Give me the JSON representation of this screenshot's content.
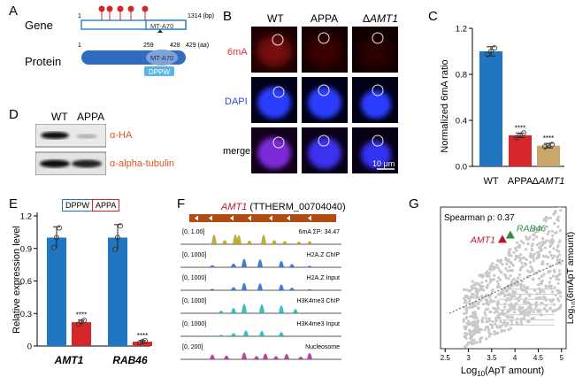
{
  "panel_letters": [
    "A",
    "B",
    "C",
    "D",
    "E",
    "F",
    "G"
  ],
  "panelA": {
    "gene_label": "Gene",
    "protein_label": "Protein",
    "gene_start": "1",
    "gene_end": "1314 (bp)",
    "gene_domain": "MT-A70",
    "prot_start": "1",
    "prot_ticks": [
      "259",
      "428",
      "429 (aa)"
    ],
    "prot_domain": "MT-A70",
    "motif": "DPPW",
    "colors": {
      "gene_line": "#3a85c8",
      "protein": "#2f6cc1",
      "domain": "#7fa3d8",
      "pin": "#d5262a",
      "motif": "#5bb4e5"
    }
  },
  "panelB": {
    "columns": [
      "WT",
      "APPA",
      "ΔAMT1"
    ],
    "rows": [
      "6mA",
      "DAPI",
      "merge"
    ],
    "scale_bar": "10 μm",
    "row_colors": {
      "6mA": "#e3343c",
      "DAPI": "#2c4be0"
    }
  },
  "panelD": {
    "columns": [
      "WT",
      "APPA"
    ],
    "bands": [
      "α-HA",
      "α-alpha-tubulin"
    ],
    "label_color": "#e0531f"
  },
  "panelF": {
    "gene": "AMT1",
    "gene_id": "(TTHERM_00704040)",
    "tracks": [
      {
        "range": "[0, 1.00]",
        "label": "6mA ΣP: 34.47",
        "color": "#b8a52a"
      },
      {
        "range": "[0, 1000]",
        "label": "H2A.Z ChIP",
        "color": "#2e6fd0"
      },
      {
        "range": "[0, 1000]",
        "label": "H2A.Z Input",
        "color": "#2e6fd0"
      },
      {
        "range": "[0, 1000]",
        "label": "H3K4me3 ChIP",
        "color": "#27b6bd"
      },
      {
        "range": "[0, 1000]",
        "label": "H3K4me3 Input",
        "color": "#27b6bd"
      },
      {
        "range": "[0, 200]",
        "label": "Nucleosome",
        "color": "#b2309a"
      }
    ]
  },
  "chart_data": [
    {
      "type": "bar",
      "panel": "C",
      "categories": [
        "WT",
        "APPA",
        "ΔAMT1"
      ],
      "values": [
        1.0,
        0.27,
        0.18
      ],
      "errors": [
        0.04,
        0.02,
        0.02
      ],
      "points": [
        [
          0.97,
          1.0,
          1.03
        ],
        [
          0.25,
          0.27,
          0.29
        ],
        [
          0.17,
          0.18,
          0.19
        ]
      ],
      "significance": [
        "",
        "****",
        "****"
      ],
      "ylabel": "Normalized 6mA ratio",
      "ylim": [
        0,
        1.2
      ],
      "yticks": [
        "0.0",
        "0.4",
        "0.8",
        "1.2"
      ],
      "colors": [
        "#2176c2",
        "#d5262a",
        "#c9a66b"
      ]
    },
    {
      "type": "bar",
      "panel": "E",
      "categories": [
        "AMT1",
        "RAB46"
      ],
      "series": [
        {
          "name": "DPPW",
          "values": [
            1.0,
            1.0
          ],
          "errors": [
            0.1,
            0.12
          ],
          "color": "#2176c2"
        },
        {
          "name": "APPA",
          "values": [
            0.22,
            0.04
          ],
          "errors": [
            0.02,
            0.01
          ],
          "color": "#d5262a"
        }
      ],
      "significance": [
        "****",
        "****"
      ],
      "ylabel": "Relative expression level",
      "ylim": [
        0,
        1.2
      ],
      "yticks": [
        "0",
        "0.3",
        "0.6",
        "0.9",
        "1.2"
      ],
      "legend": [
        "DPPW",
        "APPA"
      ]
    },
    {
      "type": "scatter",
      "panel": "G",
      "xlabel_base": "Log",
      "xlabel_sub": "10",
      "xlabel_rest": "(ApT amount)",
      "ylabel": "Log10(6mApT amount)",
      "xticks": [
        "2.5",
        "3",
        "3.5",
        "4",
        "4.5",
        "5"
      ],
      "xlim": [
        2.4,
        5.1
      ],
      "annotation": "Spearman ρ: 0.37",
      "highlights": [
        {
          "name": "AMT1",
          "x": 3.73,
          "y": 3.35,
          "color": "#b5192a"
        },
        {
          "name": "RAB46",
          "x": 3.9,
          "y": 3.45,
          "color": "#2a8f3c"
        }
      ],
      "ylim": [
        0.8,
        4.1
      ]
    }
  ]
}
